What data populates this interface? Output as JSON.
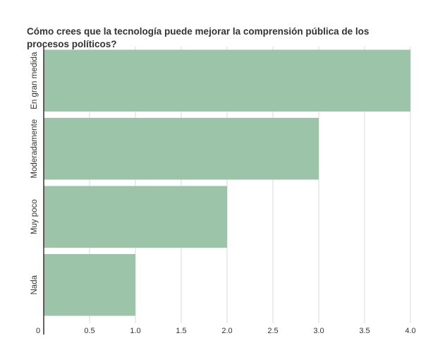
{
  "chart_data": {
    "type": "bar",
    "orientation": "horizontal",
    "title": "Cómo crees que la tecnología puede mejorar la comprensión pública de los procesos políticos?",
    "categories": [
      "En gran medida",
      "Moderadamente",
      "Muy poco",
      "Nada"
    ],
    "values": [
      4,
      3,
      2,
      1
    ],
    "xlim": [
      0,
      4.0
    ],
    "xticks": [
      "0",
      "0.5",
      "1.0",
      "1.5",
      "2.0",
      "2.5",
      "3.0",
      "3.5",
      "4.0"
    ],
    "xlabel": "",
    "ylabel": "",
    "grid": true,
    "legend": "none",
    "colors": {
      "bar": "#9bc4a8",
      "grid": "#d9d9d9",
      "axis": "#333333",
      "text": "#333333"
    }
  }
}
